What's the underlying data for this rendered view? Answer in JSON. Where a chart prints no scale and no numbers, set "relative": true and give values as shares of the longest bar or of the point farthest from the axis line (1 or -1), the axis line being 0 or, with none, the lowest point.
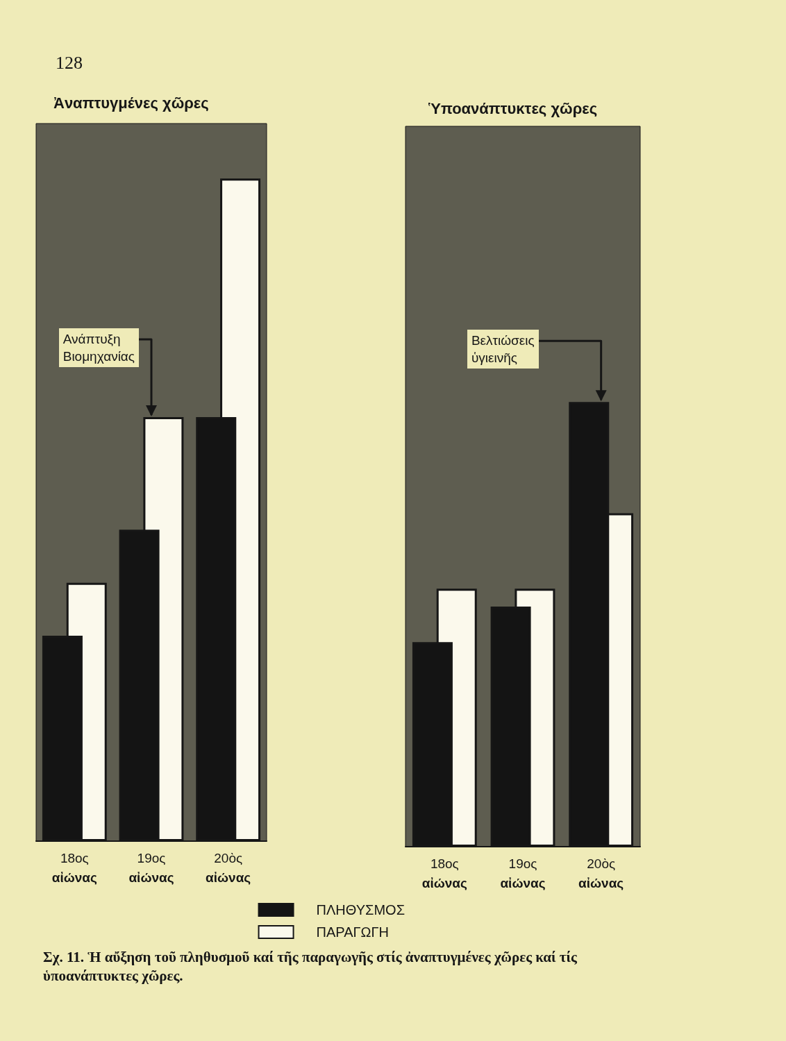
{
  "chart_data": [
    {
      "type": "bar",
      "title": "Ἀναπτυγμένες χῶρες",
      "categories": [
        "18ος αἰώνας",
        "19ος αἰώνας",
        "20ὸς αἰώνας"
      ],
      "relative": true,
      "series": [
        {
          "name": "ΠΛΗΘΥΣΜΟΣ",
          "color": "#141414",
          "values": [
            0.31,
            0.47,
            0.64
          ]
        },
        {
          "name": "ΠΑΡΑΓΩΓΗ",
          "color": "#fbf9ec",
          "values": [
            0.39,
            0.64,
            1
          ]
        }
      ],
      "legend": "bottom right",
      "annotations": [
        "128",
        {
          "text": "Ανάπτυξη Βιομηχανίας",
          "x": "19ος αἰώνας",
          "y": 0.64
        }
      ]
    },
    {
      "type": "bar",
      "title": "Ὑποανάπτυκτες χῶρες",
      "categories": [
        "18ος αἰώνας",
        "19ος αἰώνας",
        "20ὸς αἰώνας"
      ],
      "relative": true,
      "series": [
        {
          "color": "#141414",
          "values": [
            0.46,
            0.54,
            1
          ]
        },
        {
          "color": "#fbf9ec",
          "values": [
            0.58,
            0.58,
            0.75
          ]
        }
      ],
      "annotations": [
        {
          "text": "Βελτιώσεις ὑγιεινῆς",
          "x": "20ὸς αἰώνας",
          "y": 1
        },
        "Σχ. 11. Ἡ αὔξηση τοῦ πληθυσμοῦ καί τῆς παραγωγῆς στίς ἀναπτυγμένες χῶρες καί τίς ὑποανάπτυκτες χῶρες."
      ]
    }
  ]
}
